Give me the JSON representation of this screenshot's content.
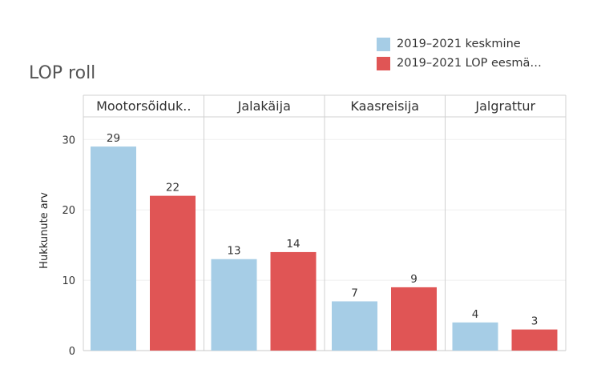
{
  "title": "LOP roll",
  "legend": [
    {
      "label": "2019–2021 keskmine",
      "color": "#a6cde6"
    },
    {
      "label": "2019–2021 LOP eesmä…",
      "color": "#e05555"
    }
  ],
  "chart_data": {
    "type": "bar",
    "title": "LOP roll",
    "categories": [
      "Mootorsõiduk..",
      "Jalakäija",
      "Kaasreisija",
      "Jalgrattur"
    ],
    "series": [
      {
        "name": "2019–2021 keskmine",
        "color": "#a6cde6",
        "values": [
          29,
          13,
          7,
          4
        ]
      },
      {
        "name": "2019–2021 LOP eesmä…",
        "color": "#e05555",
        "values": [
          22,
          14,
          9,
          3
        ]
      }
    ],
    "ylabel": "Hukkunute arv",
    "xlabel": "",
    "yticks": [
      0,
      10,
      20,
      30
    ],
    "ylim": [
      0,
      33
    ],
    "grid": true,
    "legend_position": "top-right"
  }
}
